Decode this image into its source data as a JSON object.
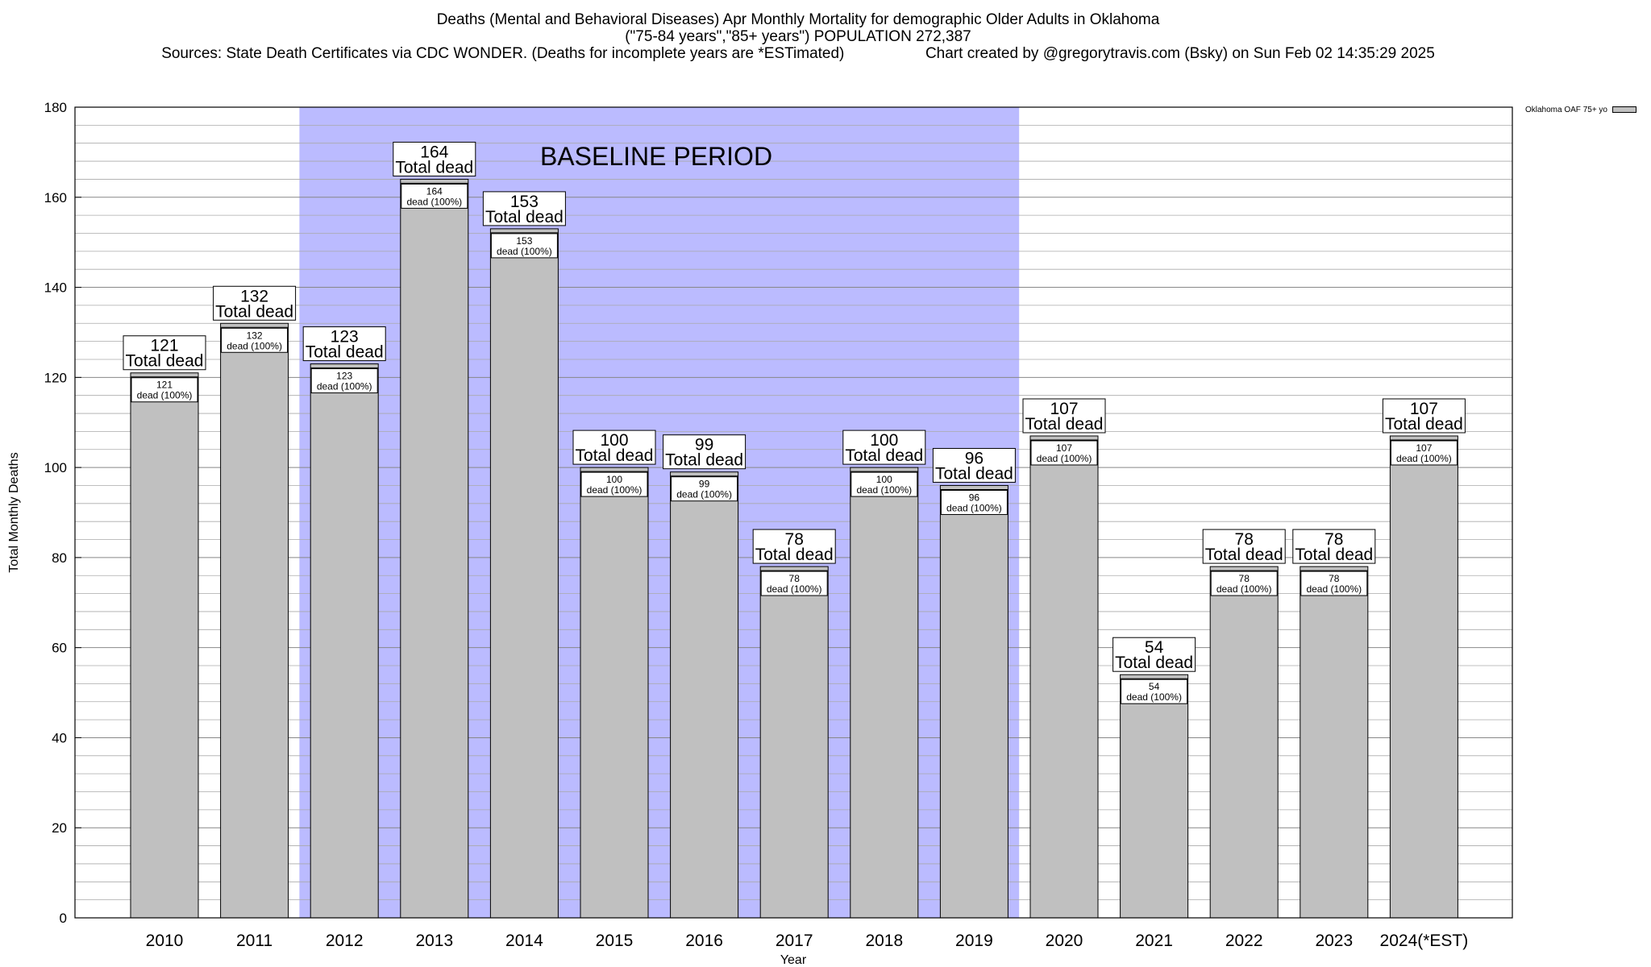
{
  "title": {
    "line1": "Deaths (Mental and Behavioral Diseases) Apr Monthly Mortality for demographic Older Adults in Oklahoma",
    "line2": "(\"75-84 years\",\"85+ years\") POPULATION 272,387",
    "sources": "Sources: State Death Certificates via CDC WONDER. (Deaths for incomplete years are *ESTimated)",
    "credit": "Chart created by @gregorytravis.com (Bsky) on Sun Feb 02 14:35:29 2025"
  },
  "legend": {
    "label": "Oklahoma OAF 75+ yo"
  },
  "colors": {
    "bar": "#c0c0c0",
    "baseline_shade": "#bbbbff",
    "grid": "#999999"
  },
  "chart_data": {
    "type": "bar",
    "title": "Deaths (Mental and Behavioral Diseases) Apr Monthly Mortality for demographic Older Adults in Oklahoma",
    "xlabel": "Year",
    "ylabel": "Total Monthly Deaths",
    "ylim": [
      0,
      180
    ],
    "yticks": [
      0,
      20,
      40,
      60,
      80,
      100,
      120,
      140,
      160,
      180
    ],
    "grid": true,
    "legend_position": "top-right",
    "categories": [
      "2010",
      "2011",
      "2012",
      "2013",
      "2014",
      "2015",
      "2016",
      "2017",
      "2018",
      "2019",
      "2020",
      "2021",
      "2022",
      "2023",
      "2024(*EST)"
    ],
    "series": [
      {
        "name": "Oklahoma OAF 75+ yo",
        "values": [
          121,
          132,
          123,
          164,
          153,
          100,
          99,
          78,
          100,
          96,
          107,
          54,
          78,
          78,
          107
        ]
      }
    ],
    "total_label": "Total dead",
    "inner_label": "dead (100%)",
    "annotation": {
      "text": "BASELINE PERIOD",
      "from": "2012",
      "to": "2019"
    }
  }
}
